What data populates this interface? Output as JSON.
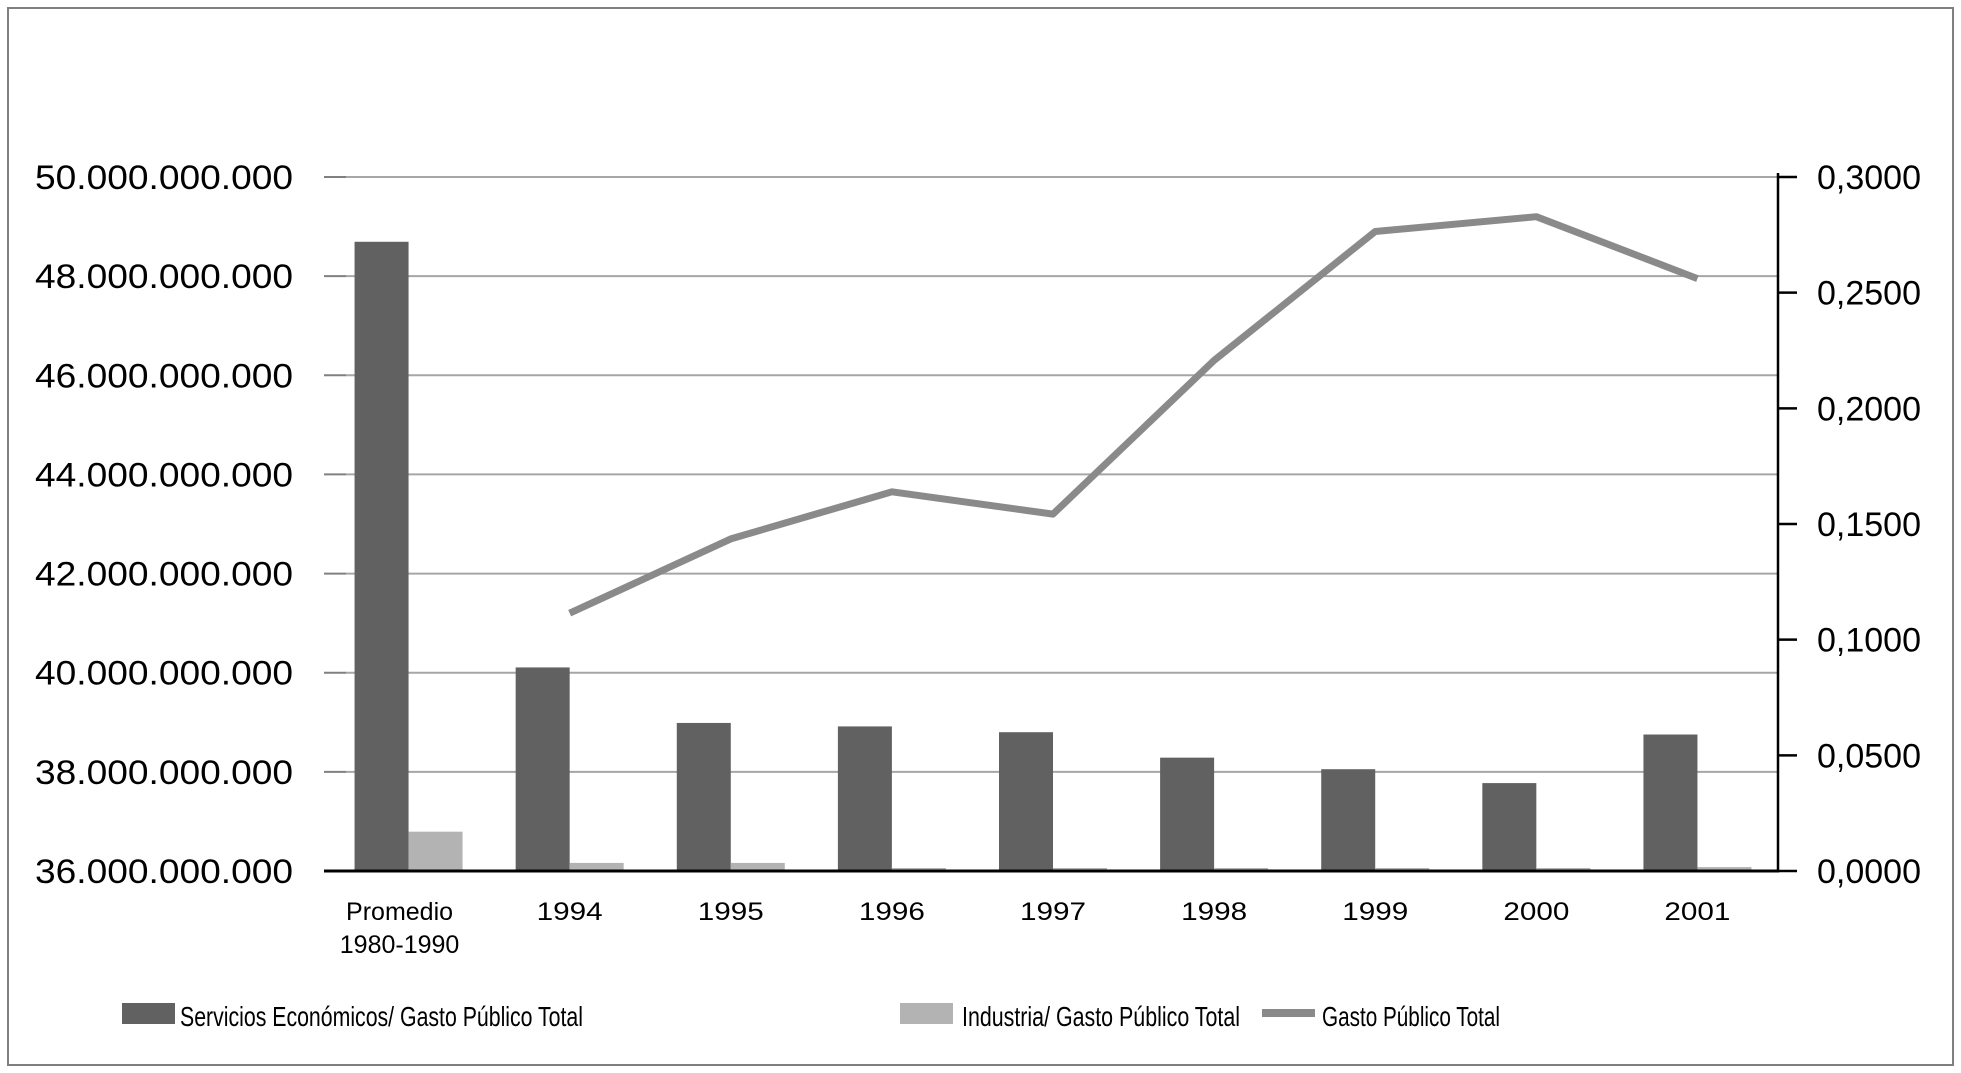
{
  "figure": {
    "background": "#ffffff",
    "border_color": "#7f7f7f"
  },
  "chart_data": {
    "type": "combo: grouped bar + line, dual axis",
    "title": "",
    "xlabel": "",
    "ylabel_left": "",
    "ylabel_right": "",
    "grid": true,
    "legend_position": "bottom",
    "categories": [
      "Promedio 1980-1990",
      "1994",
      "1995",
      "1996",
      "1997",
      "1998",
      "1999",
      "2000",
      "2001"
    ],
    "series": [
      {
        "name": "Servicios Económicos/ Gasto Público Total",
        "type": "bar",
        "axis": "right",
        "color": "#616161",
        "values": [
          0.272,
          0.088,
          0.064,
          0.0625,
          0.06,
          0.049,
          0.044,
          0.038,
          0.059
        ]
      },
      {
        "name": "Industria/ Gasto Público Total",
        "type": "bar",
        "axis": "right",
        "color": "#b3b3b3",
        "values": [
          0.017,
          0.0035,
          0.0035,
          0.0013,
          0.0013,
          0.0013,
          0.0013,
          0.0013,
          0.0017
        ]
      },
      {
        "name": "Gasto Público Total",
        "type": "line",
        "axis": "left",
        "color": "#8a8a8a",
        "values": [
          null,
          41200000000,
          42700000000,
          43650000000,
          43200000000,
          46300000000,
          48900000000,
          49200000000,
          47950000000
        ]
      }
    ],
    "left_axis": {
      "min": 36000000000,
      "max": 50000000000,
      "step": 2000000000,
      "tick_labels_top_to_bottom": [
        "50.000.000.000",
        "48.000.000.000",
        "46.000.000.000",
        "44.000.000.000",
        "42.000.000.000",
        "40.000.000.000",
        "38.000.000.000",
        "36.000.000.000"
      ]
    },
    "right_axis": {
      "min": 0.0,
      "max": 0.3,
      "step": 0.05,
      "tick_labels_top_to_bottom": [
        "0,3000",
        "0,2500",
        "0,2000",
        "0,1500",
        "0,1000",
        "0,0500",
        "0,0000"
      ]
    },
    "style": {
      "gridline_color": "#a6a6a6",
      "baseline_color": "#000000",
      "right_axis_color": "#000000",
      "tick_color": "#808080",
      "label_color": "#1a1a1a"
    }
  },
  "legend": {
    "items": [
      {
        "swatch": "bar",
        "color": "#616161",
        "label": "Servicios Económicos/ Gasto Público Total"
      },
      {
        "swatch": "bar",
        "color": "#b3b3b3",
        "label": "Industria/ Gasto Público Total"
      },
      {
        "swatch": "line",
        "color": "#8a8a8a",
        "label": "Gasto Público Total"
      }
    ]
  }
}
